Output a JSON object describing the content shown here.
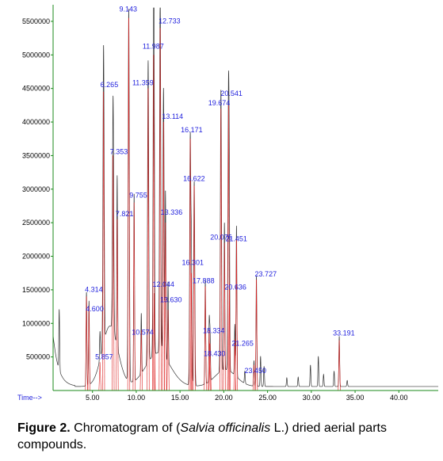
{
  "caption": {
    "figure_label": "Figure 2.",
    "text_before": " Chromatogram of (",
    "species": "Salvia officinalis",
    "text_after": " L.) dried aerial parts compounds."
  },
  "colors": {
    "trace_black": "#333333",
    "trace_red": "#dd2222",
    "label_blue": "#2222dd",
    "axis": "#1a8a1a"
  },
  "chart_data": {
    "type": "line",
    "title": "",
    "xlabel": "Time-->",
    "ylabel": "",
    "xlim": [
      0.5,
      44.5
    ],
    "ylim": [
      0,
      5700000
    ],
    "x_ticks": [
      5.0,
      10.0,
      15.0,
      20.0,
      25.0,
      30.0,
      35.0,
      40.0
    ],
    "x_tick_labels": [
      "5.00",
      "10.00",
      "15.00",
      "20.00",
      "25.00",
      "30.00",
      "35.00",
      "40.00"
    ],
    "y_ticks": [
      500000,
      1000000,
      1500000,
      2000000,
      2500000,
      3000000,
      3500000,
      4000000,
      4500000,
      5000000,
      5500000
    ],
    "y_tick_labels": [
      "500000",
      "1000000",
      "1500000",
      "2000000",
      "2500000",
      "3000000",
      "3500000",
      "4000000",
      "4500000",
      "5000000",
      "5500000"
    ],
    "legend": "none",
    "grid": false,
    "peaks": [
      {
        "rt": 4.314,
        "label": "4.314",
        "height": 1400000
      },
      {
        "rt": 4.6,
        "label": "4.600",
        "height": 1250000
      },
      {
        "rt": 5.857,
        "label": "5.857",
        "height": 420000
      },
      {
        "rt": 6.265,
        "label": "6.265",
        "height": 4450000
      },
      {
        "rt": 7.353,
        "label": "7.353",
        "height": 3500000
      },
      {
        "rt": 7.821,
        "label": "7.821",
        "height": 2550000
      },
      {
        "rt": 9.143,
        "label": "9.143",
        "height": 5550000
      },
      {
        "rt": 9.755,
        "label": "9.755",
        "height": 2800000
      },
      {
        "rt": 10.574,
        "label": "10.574",
        "height": 900000
      },
      {
        "rt": 11.359,
        "label": "11.359",
        "height": 4500000
      },
      {
        "rt": 11.987,
        "label": "11.987",
        "height": 5000000
      },
      {
        "rt": 12.044,
        "label": "12.044",
        "height": 1450000
      },
      {
        "rt": 12.733,
        "label": "12.733",
        "height": 5400000
      },
      {
        "rt": 13.114,
        "label": "13.114",
        "height": 4000000
      },
      {
        "rt": 13.336,
        "label": "13.336",
        "height": 2500000
      },
      {
        "rt": 13.63,
        "label": "13.630",
        "height": 1200000
      },
      {
        "rt": 16.171,
        "label": "16.171",
        "height": 3750000
      },
      {
        "rt": 16.301,
        "label": "16.301",
        "height": 1750000
      },
      {
        "rt": 16.622,
        "label": "16.622",
        "height": 3050000
      },
      {
        "rt": 17.888,
        "label": "17.888",
        "height": 1550000
      },
      {
        "rt": 18.334,
        "label": "18.334",
        "height": 900000
      },
      {
        "rt": 18.43,
        "label": "18.430",
        "height": 700000
      },
      {
        "rt": 19.674,
        "label": "19.674",
        "height": 4200000
      },
      {
        "rt": 20.075,
        "label": "20.075",
        "height": 2200000
      },
      {
        "rt": 20.541,
        "label": "20.541",
        "height": 4250000
      },
      {
        "rt": 20.636,
        "label": "20.636",
        "height": 1600000
      },
      {
        "rt": 21.265,
        "label": "21.265",
        "height": 760000
      },
      {
        "rt": 21.451,
        "label": "21.451",
        "height": 2250000
      },
      {
        "rt": 23.45,
        "label": "23.450",
        "height": 380000
      },
      {
        "rt": 23.727,
        "label": "23.727",
        "height": 1650000
      },
      {
        "rt": 33.191,
        "label": "33.191",
        "height": 750000
      }
    ],
    "minor_peaks": [
      {
        "rt": 1.2,
        "height": 900000
      },
      {
        "rt": 22.4,
        "height": 180000
      },
      {
        "rt": 24.2,
        "height": 450000
      },
      {
        "rt": 24.6,
        "height": 300000
      },
      {
        "rt": 27.2,
        "height": 130000
      },
      {
        "rt": 28.5,
        "height": 140000
      },
      {
        "rt": 29.9,
        "height": 320000
      },
      {
        "rt": 30.8,
        "height": 450000
      },
      {
        "rt": 31.4,
        "height": 180000
      },
      {
        "rt": 32.6,
        "height": 230000
      },
      {
        "rt": 34.1,
        "height": 90000
      }
    ]
  }
}
